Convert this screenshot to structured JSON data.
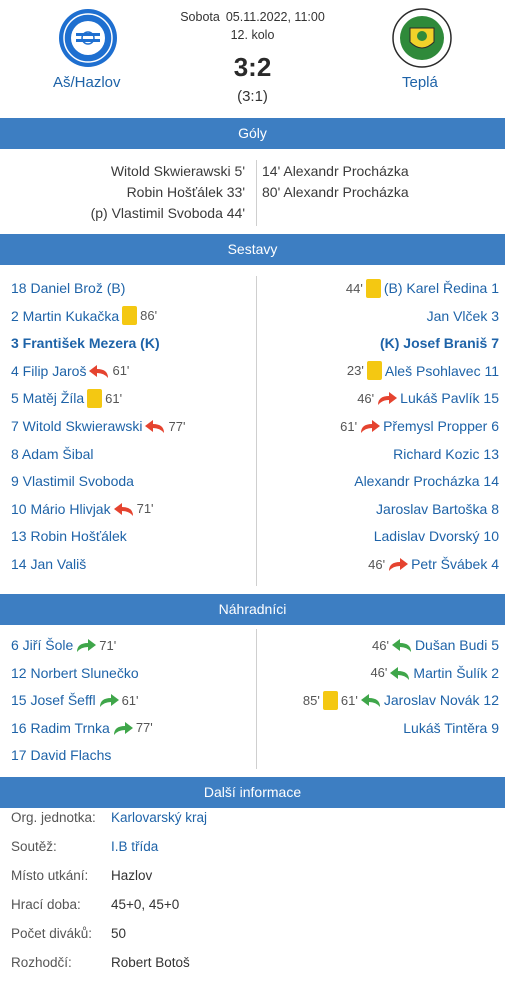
{
  "match": {
    "day": "Sobota",
    "datetime": "05.11.2022, 11:00",
    "round": "12. kolo",
    "score": "3:2",
    "halftime": "(3:1)",
    "home_team": "Aš/Hazlov",
    "away_team": "Teplá"
  },
  "sections": {
    "goals": "Góly",
    "lineups": "Sestavy",
    "subs": "Náhradníci",
    "info": "Další informace"
  },
  "goals": {
    "home": [
      "Witold Skwierawski 5'",
      "Robin Hošťálek 33'",
      "(p) Vlastimil Svoboda 44'"
    ],
    "away": [
      "14' Alexandr Procházka",
      "80' Alexandr Procházka"
    ]
  },
  "lineups": {
    "home": [
      {
        "name": "18 Daniel Brož (B)"
      },
      {
        "name": "2 Martin Kukačka",
        "card": "86'"
      },
      {
        "name": "3 František Mezera (K)",
        "captain": true
      },
      {
        "name": "4 Filip Jaroš",
        "sub_out": "61'"
      },
      {
        "name": "5 Matěj Žíla",
        "card": "61'"
      },
      {
        "name": "7 Witold Skwierawski",
        "sub_out": "77'"
      },
      {
        "name": "8 Adam Šibal"
      },
      {
        "name": "9 Vlastimil Svoboda"
      },
      {
        "name": "10 Mário Hlivjak",
        "sub_out": "71'"
      },
      {
        "name": "13 Robin Hošťálek"
      },
      {
        "name": "14 Jan Vališ"
      }
    ],
    "away": [
      {
        "name": "(B) Karel Ředina 1",
        "card": "44'"
      },
      {
        "name": "Jan Vlček 3"
      },
      {
        "name": "(K) Josef Braniš 7",
        "captain": true
      },
      {
        "name": "Aleš Psohlavec 11",
        "card": "23'"
      },
      {
        "name": "Lukáš Pavlík 15",
        "sub_out": "46'"
      },
      {
        "name": "Přemysl Propper 6",
        "sub_out": "61'"
      },
      {
        "name": "Richard Kozic 13"
      },
      {
        "name": "Alexandr Procházka 14"
      },
      {
        "name": "Jaroslav Bartoška 8"
      },
      {
        "name": "Ladislav Dvorský 10"
      },
      {
        "name": "Petr Švábek 4",
        "sub_out": "46'"
      }
    ]
  },
  "subs": {
    "home": [
      {
        "name": "6 Jiří Šole",
        "sub_in": "71'"
      },
      {
        "name": "12 Norbert Slunečko"
      },
      {
        "name": "15 Josef Šeffl",
        "sub_in": "61'"
      },
      {
        "name": "16 Radim Trnka",
        "sub_in": "77'"
      },
      {
        "name": "17 David Flachs"
      }
    ],
    "away": [
      {
        "name": "Dušan Budi 5",
        "sub_in": "46'"
      },
      {
        "name": "Martin Šulík 2",
        "sub_in": "46'"
      },
      {
        "name": "Jaroslav Novák 12",
        "sub_in": "61'",
        "card": "85'"
      },
      {
        "name": "Lukáš Tintěra 9"
      }
    ]
  },
  "info": [
    {
      "key": "Org. jednotka:",
      "value": "Karlovarský kraj",
      "link": true
    },
    {
      "key": "Soutěž:",
      "value": "I.B třída",
      "link": true
    },
    {
      "key": "Místo utkání:",
      "value": "Hazlov"
    },
    {
      "key": "Hrací doba:",
      "value": "45+0, 45+0"
    },
    {
      "key": "Počet diváků:",
      "value": "50"
    },
    {
      "key": "Rozhodčí:",
      "value": "Robert Botoš"
    }
  ],
  "colors": {
    "bar": "#3d7ec2",
    "link": "#1e63a8",
    "yellow_card": "#f4c812",
    "sub_out_arrow": "#e5432f",
    "sub_in_arrow": "#3fa64a"
  },
  "icons": {
    "yellow_card": "yellow-card-icon",
    "sub_out": "substitution-out-icon",
    "sub_in": "substitution-in-icon"
  }
}
